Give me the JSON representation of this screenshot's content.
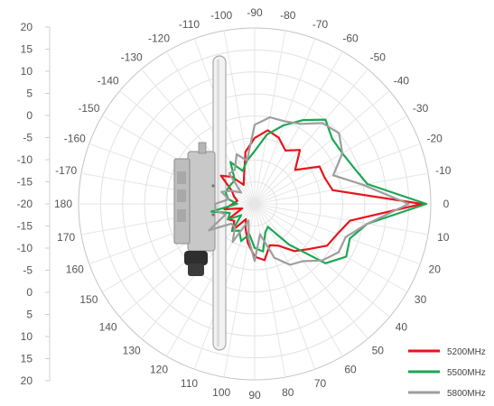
{
  "chart_data": {
    "type": "polar",
    "title": "",
    "radial_axis": {
      "tick_labels": [
        "20",
        "15",
        "10",
        "5",
        "0",
        "-5",
        "-10",
        "-15",
        "-20",
        "-15",
        "-10",
        "-5",
        "0",
        "5",
        "10",
        "15",
        "20"
      ],
      "range": [
        -20,
        20
      ],
      "unit": ""
    },
    "angular_axis": {
      "tick_labels": [
        "-90",
        "-80",
        "-70",
        "-60",
        "-50",
        "-40",
        "-30",
        "-20",
        "-10",
        "0",
        "10",
        "20",
        "30",
        "40",
        "50",
        "60",
        "70",
        "80",
        "90",
        "100",
        "110",
        "120",
        "130",
        "140",
        "150",
        "160",
        "170",
        "180",
        "-170",
        "-160",
        "-150",
        "-140",
        "-130",
        "-120",
        "-110",
        "-100"
      ],
      "step_degrees": 10,
      "zero_direction": "right",
      "grid": true
    },
    "legend_position": "bottom-right",
    "angles_deg": [
      -180,
      -170,
      -160,
      -150,
      -140,
      -130,
      -120,
      -110,
      -100,
      -90,
      -80,
      -70,
      -60,
      -50,
      -40,
      -30,
      -20,
      -10,
      0,
      10,
      20,
      30,
      40,
      50,
      60,
      70,
      80,
      90,
      100,
      110,
      120,
      130,
      140,
      150,
      160,
      170
    ],
    "series": [
      {
        "name": "5200MHz",
        "color": "#e8141c",
        "values": [
          -15,
          -16,
          -15,
          -14,
          -10,
          -12,
          -15,
          -13,
          -8,
          -5,
          -3,
          -4,
          -6,
          -4,
          -8,
          -3,
          -3,
          -2,
          18,
          2,
          0,
          -1,
          -4,
          -6,
          -9,
          -10,
          -7,
          -8,
          -11,
          -14,
          -16,
          -12,
          -14,
          -13,
          -17,
          -13
        ]
      },
      {
        "name": "5500MHz",
        "color": "#1aa852",
        "values": [
          -16,
          -14,
          -13,
          -13,
          -13,
          -13,
          -9,
          -12,
          -10,
          -8,
          -4,
          -1,
          2,
          5,
          3,
          3,
          4,
          6,
          19,
          6,
          3,
          4,
          1,
          -8,
          -14,
          -13,
          -9,
          -10,
          -13,
          -11,
          -13,
          -12,
          -16,
          -13,
          -14,
          -10
        ]
      },
      {
        "name": "5800MHz",
        "color": "#9e9e9e",
        "values": [
          -11,
          -14,
          -12,
          -14,
          -16,
          -11,
          -11,
          -8,
          -10,
          -2,
          0,
          0,
          1,
          4,
          5,
          3,
          -1,
          5,
          15,
          6,
          2,
          2,
          0,
          -3,
          -4,
          -7,
          -13,
          -7,
          -12,
          -16,
          -10,
          -13,
          -13,
          -8,
          -13,
          -11
        ]
      }
    ]
  }
}
